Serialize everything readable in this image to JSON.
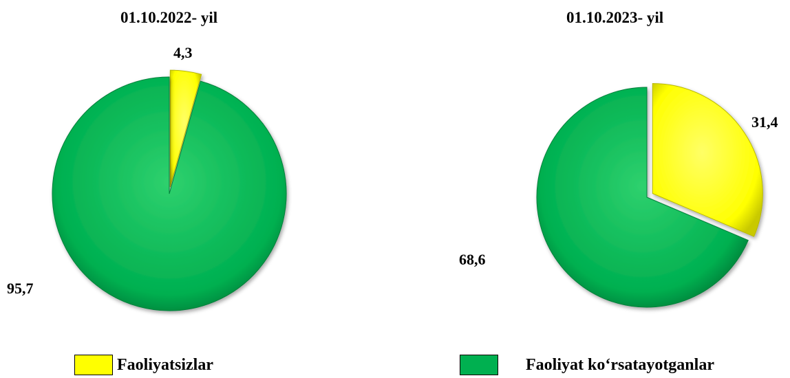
{
  "colors": {
    "inactive": "#ffff00",
    "active": "#00b050"
  },
  "legend": [
    {
      "label": "Faoliyatsizlar",
      "color": "#ffff00"
    },
    {
      "label": "Faoliyat ko‘rsatayotganlar",
      "color": "#00b050"
    }
  ],
  "chart_data": [
    {
      "type": "pie",
      "title": "01.10.2022- yil",
      "categories": [
        "Faoliyatsizlar",
        "Faoliyat ko‘rsatayotganlar"
      ],
      "values": [
        4.3,
        95.7
      ],
      "value_labels": [
        "4,3",
        "95,7"
      ],
      "exploded": "Faoliyatsizlar"
    },
    {
      "type": "pie",
      "title": "01.10.2023- yil",
      "categories": [
        "Faoliyatsizlar",
        "Faoliyat ko‘rsatayotganlar"
      ],
      "values": [
        31.4,
        68.6
      ],
      "value_labels": [
        "31,4",
        "68,6"
      ],
      "exploded": "Faoliyatsizlar"
    }
  ]
}
